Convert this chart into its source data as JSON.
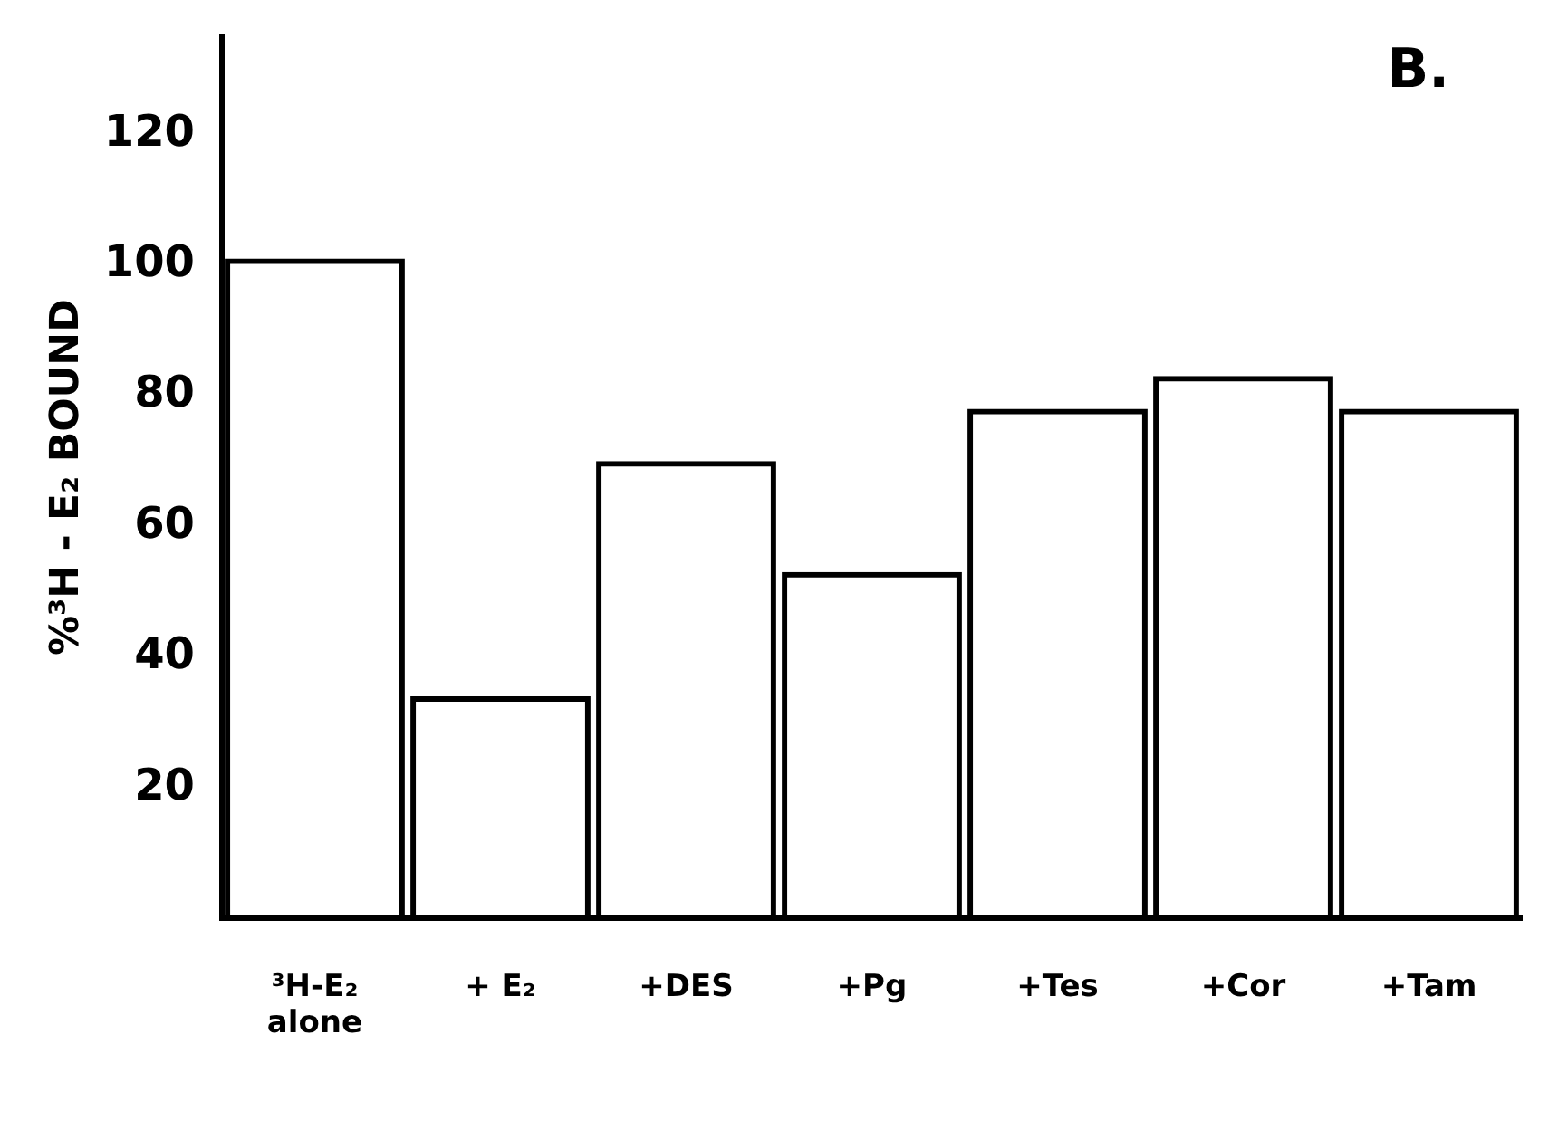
{
  "chart_data": {
    "type": "bar",
    "title": "B.",
    "ylabel": "%³H - E₂ BOUND",
    "categories": [
      "³H-E₂ alone",
      "+ E₂",
      "+DES",
      "+Pg",
      "+Tes",
      "+Cor",
      "+Tam"
    ],
    "values": [
      101,
      34,
      70,
      53,
      78,
      83,
      78
    ],
    "color": "#000000",
    "ylim": [
      0,
      135
    ],
    "yticks": [
      20,
      40,
      60,
      80,
      100,
      120
    ],
    "grid": false,
    "legend": false
  }
}
